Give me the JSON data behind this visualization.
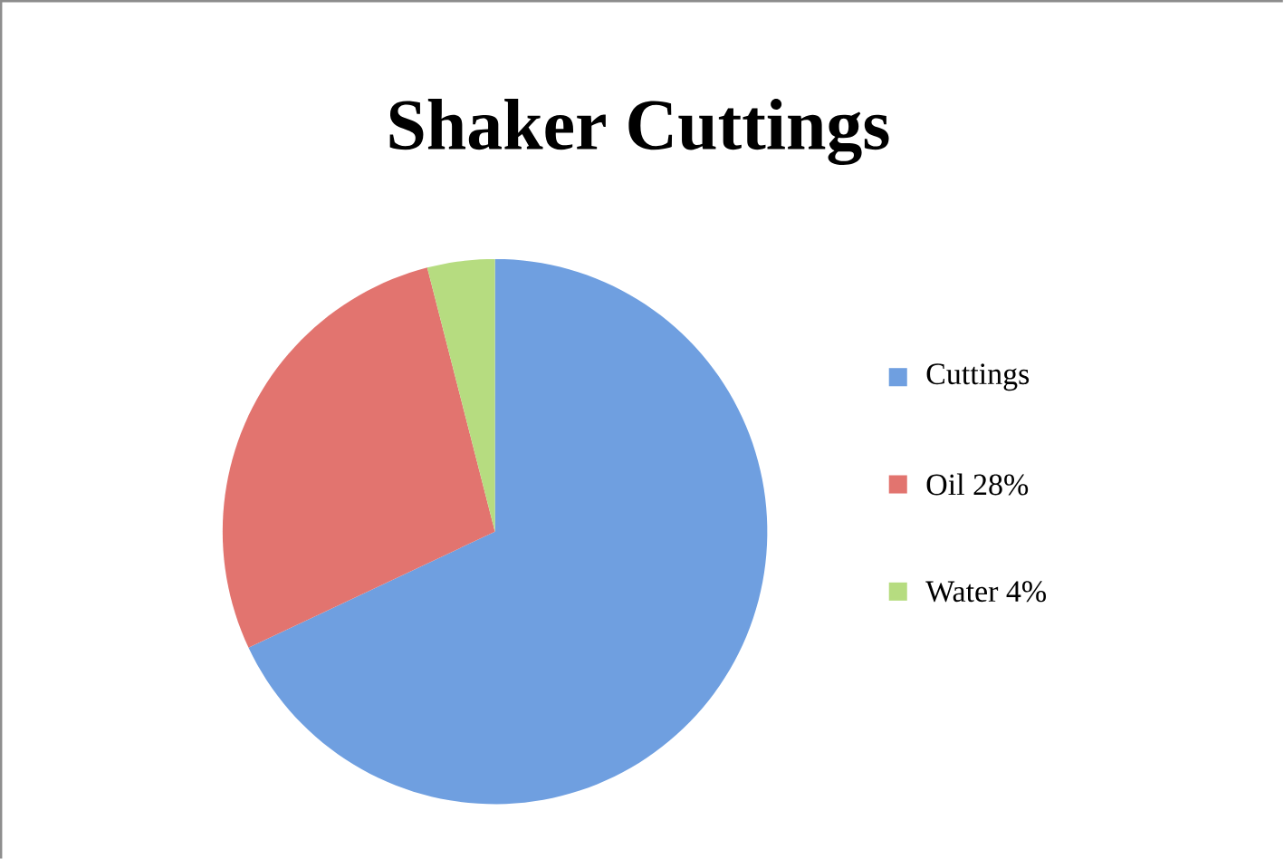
{
  "chart_data": {
    "type": "pie",
    "title": "Shaker Cuttings",
    "categories": [
      "Cuttings",
      "Oil 28%",
      "Water 4%"
    ],
    "values": [
      68,
      28,
      4
    ],
    "colors": [
      "#6f9fe0",
      "#e2746f",
      "#b6dc80"
    ],
    "legend": "right"
  }
}
